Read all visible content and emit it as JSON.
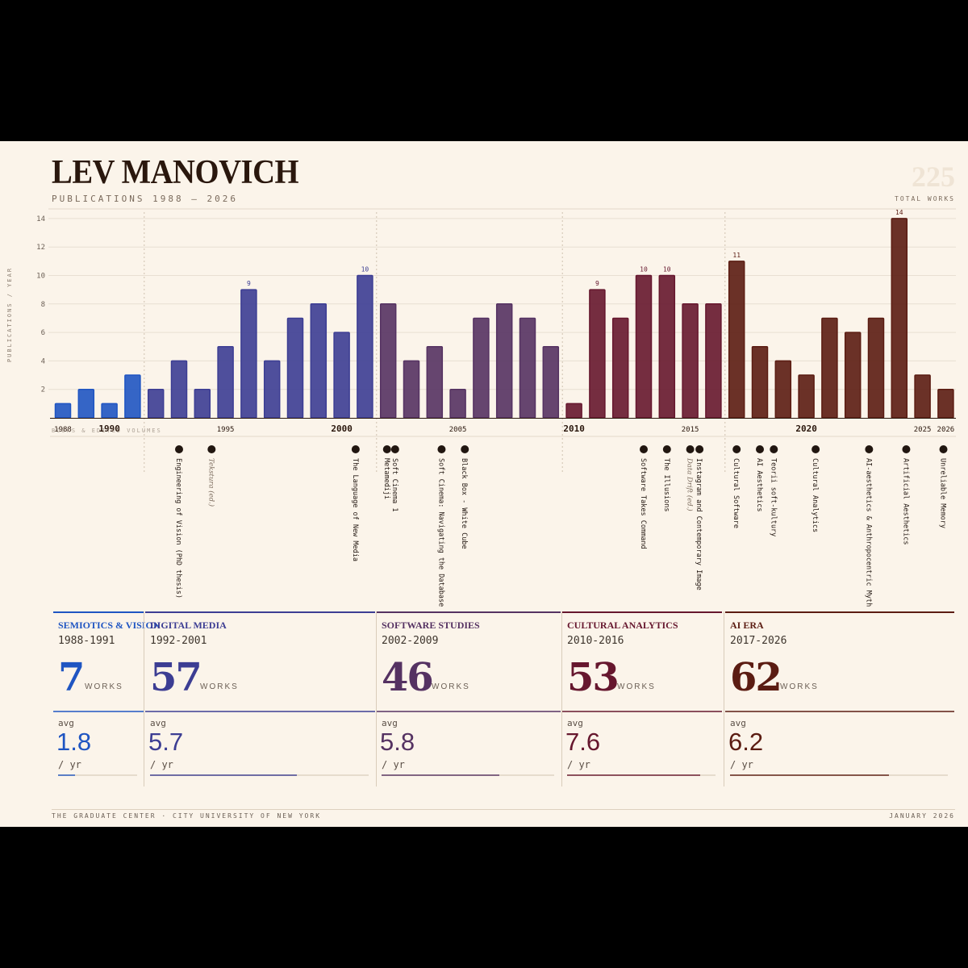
{
  "header": {
    "title": "LEV MANOVICH",
    "subtitle": "PUBLICATIONS 1988 – 2026",
    "total_works": "225",
    "total_label": "TOTAL WORKS"
  },
  "colors": {
    "background": "#fbf4ea",
    "semiotics": "#1f55c2",
    "digital_media": "#3c3d93",
    "software_studies": "#553262",
    "cultural_analytics": "#66172e",
    "ai_era": "#5b1c12",
    "text_dark": "#2a170d"
  },
  "chart_data": {
    "type": "bar",
    "ylabel": "PUBLICATIONS / YEAR",
    "ylim": [
      0,
      14
    ],
    "yticks": [
      2,
      4,
      6,
      8,
      10,
      12,
      14
    ],
    "x": [
      1988,
      1989,
      1990,
      1991,
      1992,
      1993,
      1994,
      1995,
      1996,
      1997,
      1998,
      1999,
      2000,
      2001,
      2002,
      2003,
      2004,
      2005,
      2006,
      2007,
      2008,
      2009,
      2010,
      2011,
      2012,
      2013,
      2014,
      2015,
      2016,
      2017,
      2018,
      2019,
      2020,
      2021,
      2022,
      2023,
      2024,
      2025,
      2026
    ],
    "values": [
      1,
      2,
      1,
      3,
      2,
      4,
      2,
      5,
      9,
      4,
      7,
      8,
      6,
      10,
      8,
      4,
      5,
      2,
      7,
      8,
      7,
      5,
      1,
      9,
      7,
      10,
      10,
      8,
      8,
      11,
      5,
      4,
      3,
      7,
      6,
      7,
      14,
      3,
      2
    ],
    "xtick_labels": [
      {
        "year": 1988,
        "label": "1988",
        "bold": false
      },
      {
        "year": 1990,
        "label": "1990",
        "bold": true
      },
      {
        "year": 1995,
        "label": "1995",
        "bold": false
      },
      {
        "year": 2000,
        "label": "2000",
        "bold": true
      },
      {
        "year": 2005,
        "label": "2005",
        "bold": false
      },
      {
        "year": 2010,
        "label": "2010",
        "bold": true
      },
      {
        "year": 2015,
        "label": "2015",
        "bold": false
      },
      {
        "year": 2020,
        "label": "2020",
        "bold": true
      },
      {
        "year": 2025,
        "label": "2025",
        "bold": false
      },
      {
        "year": 2026,
        "label": "2026",
        "bold": false
      }
    ],
    "data_labels": [
      {
        "year": 1996,
        "value": 9
      },
      {
        "year": 2001,
        "value": 10
      },
      {
        "year": 2011,
        "value": 9
      },
      {
        "year": 2013,
        "value": 10
      },
      {
        "year": 2014,
        "value": 10
      },
      {
        "year": 2017,
        "value": 11
      },
      {
        "year": 2024,
        "value": 14
      }
    ],
    "timeline_label": "BOOKS & EDITED VOLUMES",
    "books": [
      {
        "year": 1993.0,
        "title": "Engineering of Vision (PhD thesis)",
        "italic": false
      },
      {
        "year": 1994.4,
        "title": "Tekstura (ed.)",
        "italic": true
      },
      {
        "year": 2000.6,
        "title": "The Language of New Media",
        "italic": false
      },
      {
        "year": 2001.95,
        "title": "Metamediji",
        "italic": false
      },
      {
        "year": 2002.3,
        "title": "Soft Cinema 1",
        "italic": false
      },
      {
        "year": 2004.3,
        "title": "Soft Cinema: Navigating the Database",
        "italic": false
      },
      {
        "year": 2005.3,
        "title": "Black Box - White Cube",
        "italic": false
      },
      {
        "year": 2013.0,
        "title": "Software Takes Command",
        "italic": false
      },
      {
        "year": 2014.0,
        "title": "The Illusions",
        "italic": false
      },
      {
        "year": 2015.0,
        "title": "Data Drift (ed.)",
        "italic": true
      },
      {
        "year": 2015.4,
        "title": "Instagram and Contemporary Image",
        "italic": false
      },
      {
        "year": 2017.0,
        "title": "Cultural Software",
        "italic": false
      },
      {
        "year": 2018.0,
        "title": "AI Aesthetics",
        "italic": false
      },
      {
        "year": 2018.6,
        "title": "Teorii soft-kultury",
        "italic": false
      },
      {
        "year": 2020.4,
        "title": "Cultural Analytics",
        "italic": false
      },
      {
        "year": 2022.7,
        "title": "AI-aesthetics & Anthropocentric Myth",
        "italic": false
      },
      {
        "year": 2024.3,
        "title": "Artificial Aesthetics",
        "italic": false
      },
      {
        "year": 2025.9,
        "title": "Unreliable Memory",
        "italic": false
      }
    ]
  },
  "eras": [
    {
      "name": "SEMIOTICS & VISION",
      "range": "1988-1991",
      "works": "7",
      "works_label": "WORKS",
      "avg_label": "avg",
      "avg": "1.8",
      "per_yr": "/ yr",
      "avg_value": 1.8,
      "color": "#1f55c2"
    },
    {
      "name": "DIGITAL MEDIA",
      "range": "1992-2001",
      "works": "57",
      "works_label": "WORKS",
      "avg_label": "avg",
      "avg": "5.7",
      "per_yr": "/ yr",
      "avg_value": 5.7,
      "color": "#3c3d93"
    },
    {
      "name": "SOFTWARE STUDIES",
      "range": "2002-2009",
      "works": "46",
      "works_label": "WORKS",
      "avg_label": "avg",
      "avg": "5.8",
      "per_yr": "/ yr",
      "avg_value": 5.8,
      "color": "#553262"
    },
    {
      "name": "CULTURAL ANALYTICS",
      "range": "2010-2016",
      "works": "53",
      "works_label": "WORKS",
      "avg_label": "avg",
      "avg": "7.6",
      "per_yr": "/ yr",
      "avg_value": 7.6,
      "color": "#66172e"
    },
    {
      "name": "AI ERA",
      "range": "2017-2026",
      "works": "62",
      "works_label": "WORKS",
      "avg_label": "avg",
      "avg": "6.2",
      "per_yr": "/ yr",
      "avg_value": 6.2,
      "color": "#5b1c12"
    }
  ],
  "footer": {
    "left": "THE GRADUATE CENTER · CITY UNIVERSITY OF NEW YORK",
    "right": "JANUARY 2026"
  }
}
